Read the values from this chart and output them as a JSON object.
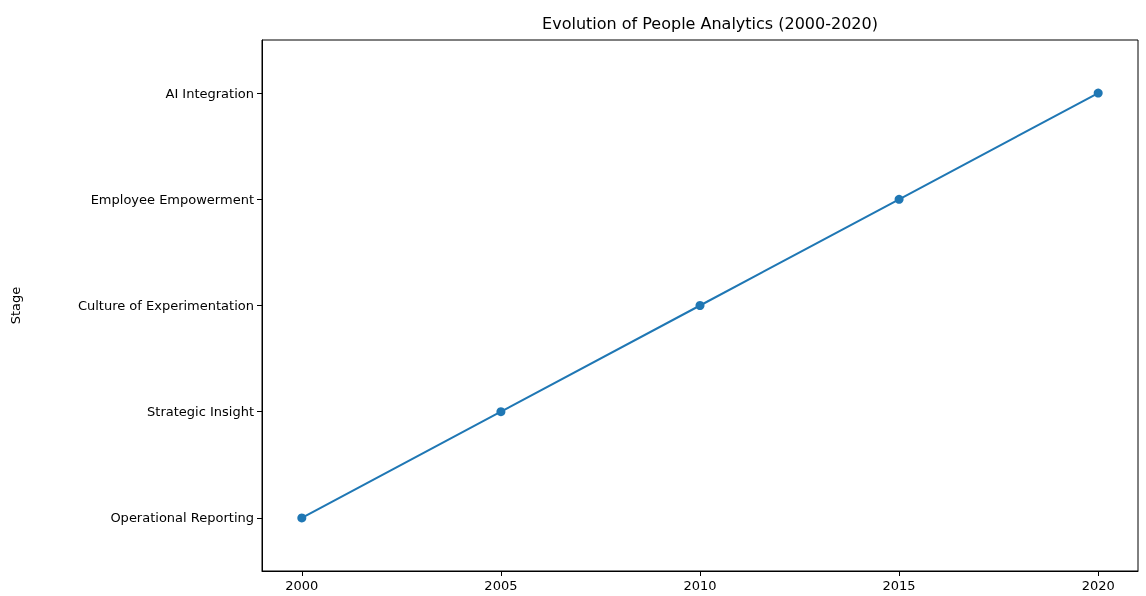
{
  "chart_data": {
    "type": "line",
    "orientation": "horizontal",
    "title": "Evolution of People Analytics (2000-2020)",
    "ylabel": "Stage",
    "categories": [
      "AI Integration",
      "Employee Empowerment",
      "Culture of Experimentation",
      "Strategic Insight",
      "Operational Reporting"
    ],
    "series": [
      {
        "color": "#1f77b4",
        "values": [
          2020,
          2015,
          2010,
          2005,
          2000
        ]
      }
    ],
    "xlim": [
      1999,
      2021
    ],
    "xticks": [
      2000,
      2005,
      2010,
      2015,
      2020
    ],
    "grid": false,
    "marker": "circle",
    "line_style": "solid"
  }
}
